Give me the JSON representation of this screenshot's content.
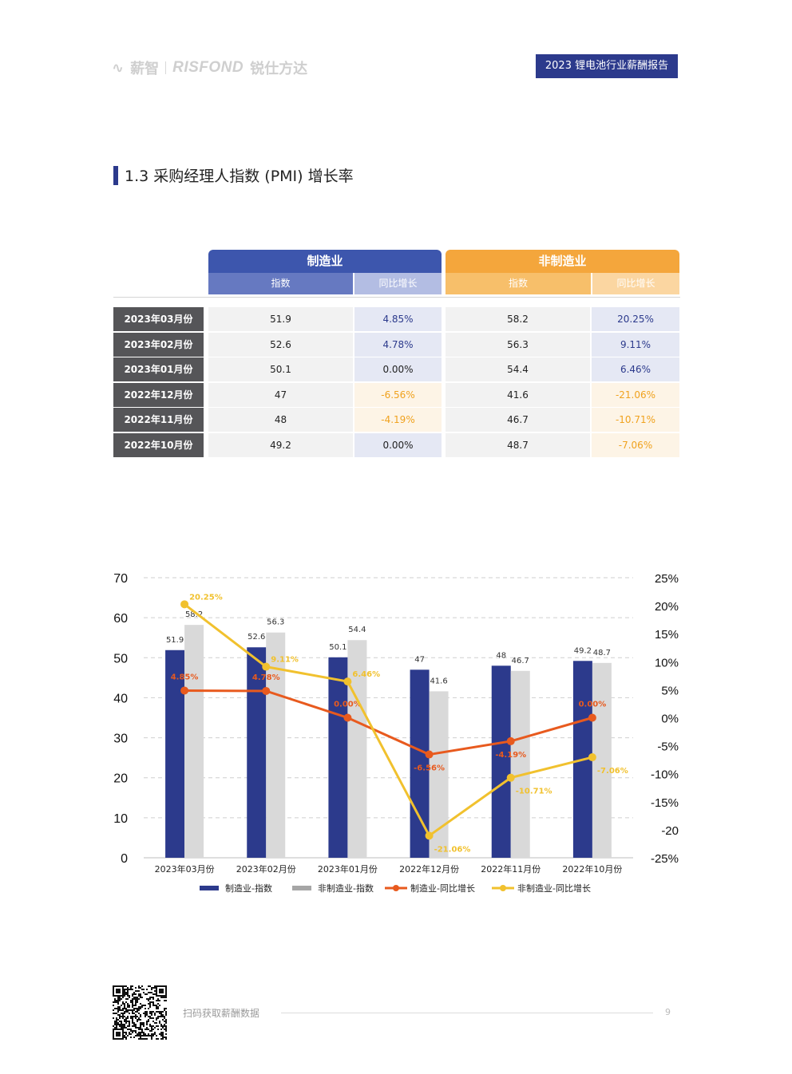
{
  "header": {
    "brand_1": "薪智",
    "brand_2": "RISFOND",
    "brand_3": "锐仕方达",
    "report_title": "2023 锂电池行业薪酬报告"
  },
  "section": {
    "title": "1.3 采购经理人指数 (PMI) 增长率"
  },
  "table": {
    "group_headers": [
      "制造业",
      "非制造业"
    ],
    "sub_headers": [
      "指数",
      "同比增长",
      "指数",
      "同比增长"
    ],
    "rows": [
      {
        "label": "2023年03月份",
        "mfg_index": "51.9",
        "mfg_growth": "4.85%",
        "non_index": "58.2",
        "non_growth": "20.25%"
      },
      {
        "label": "2023年02月份",
        "mfg_index": "52.6",
        "mfg_growth": "4.78%",
        "non_index": "56.3",
        "non_growth": "9.11%"
      },
      {
        "label": "2023年01月份",
        "mfg_index": "50.1",
        "mfg_growth": "0.00%",
        "non_index": "54.4",
        "non_growth": "6.46%"
      },
      {
        "label": "2022年12月份",
        "mfg_index": "47",
        "mfg_growth": "-6.56%",
        "non_index": "41.6",
        "non_growth": "-21.06%"
      },
      {
        "label": "2022年11月份",
        "mfg_index": "48",
        "mfg_growth": "-4.19%",
        "non_index": "46.7",
        "non_growth": "-10.71%"
      },
      {
        "label": "2022年10月份",
        "mfg_index": "49.2",
        "mfg_growth": "0.00%",
        "non_index": "48.7",
        "non_growth": "-7.06%"
      }
    ]
  },
  "chart_data": {
    "type": "bar",
    "categories": [
      "2023年03月份",
      "2023年02月份",
      "2023年01月份",
      "2022年12月份",
      "2022年11月份",
      "2022年10月份"
    ],
    "left_axis": {
      "ylim": [
        0,
        70
      ],
      "ticks": [
        "0",
        "10",
        "20",
        "30",
        "40",
        "50",
        "60",
        "70"
      ]
    },
    "right_axis": {
      "ylim": [
        -25,
        25
      ],
      "ticks": [
        "-25%",
        "-20",
        "-15%",
        "-10%",
        "-5%",
        "0%",
        "5%",
        "10%",
        "15%",
        "20%",
        "25%"
      ]
    },
    "series": [
      {
        "name": "制造业-指数",
        "kind": "bar",
        "axis": "left",
        "color": "#2c3a8c",
        "values": [
          51.9,
          52.6,
          50.1,
          47,
          48,
          49.2
        ],
        "labels": [
          "51.9",
          "52.6",
          "50.1",
          "47",
          "48",
          "49.2"
        ]
      },
      {
        "name": "非制造业-指数",
        "kind": "bar",
        "axis": "left",
        "color": "#d9d9d9",
        "values": [
          58.2,
          56.3,
          54.4,
          41.6,
          46.7,
          48.7
        ],
        "labels": [
          "58.2",
          "56.3",
          "54.4",
          "41.6",
          "46.7",
          "48.7"
        ]
      },
      {
        "name": "制造业-同比增长",
        "kind": "line",
        "axis": "right",
        "color": "#e85a1e",
        "values": [
          4.85,
          4.78,
          0.0,
          -6.56,
          -4.19,
          0.0
        ],
        "labels": [
          "4.85%",
          "4.78%",
          "0.00%",
          "-6.56%",
          "-4.19%",
          "0.00%"
        ]
      },
      {
        "name": "非制造业-同比增长",
        "kind": "line",
        "axis": "right",
        "color": "#f1c12e",
        "values": [
          20.25,
          9.11,
          6.46,
          -21.06,
          -10.71,
          -7.06
        ],
        "labels": [
          "20.25%",
          "9.11%",
          "6.46%",
          "-21.06%",
          "-10.71%",
          "-7.06%"
        ]
      }
    ],
    "grid": "dashed horizontal",
    "legend": "bottom"
  },
  "footer": {
    "scan_text": "扫码获取薪酬数据",
    "page_number": "9"
  }
}
